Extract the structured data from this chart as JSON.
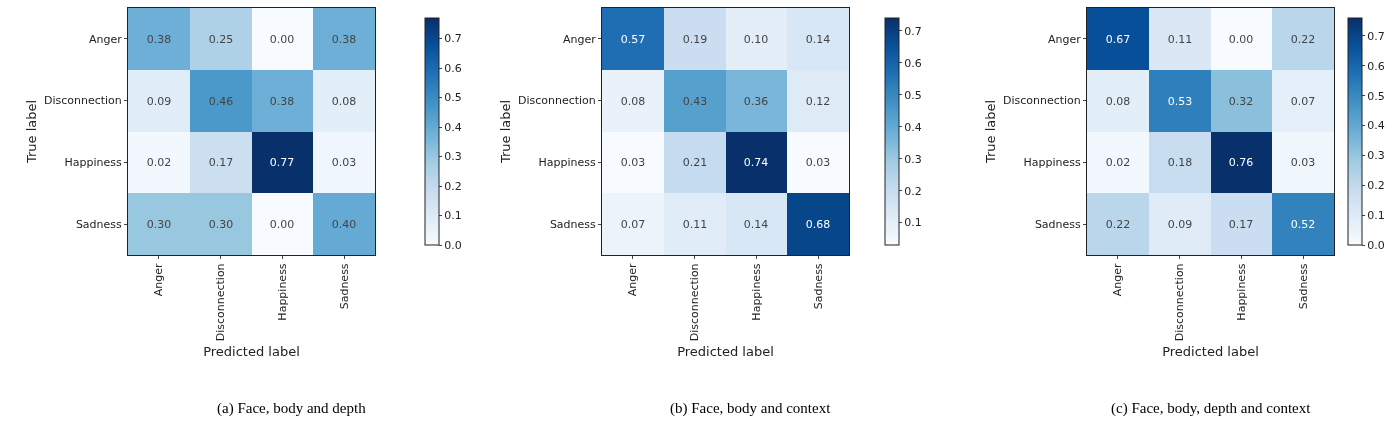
{
  "chart_data": [
    {
      "type": "heatmap",
      "title": "(a) Face, body and depth",
      "xlabel": "Predicted label",
      "ylabel": "True label",
      "categories": [
        "Anger",
        "Disconnection",
        "Happiness",
        "Sadness"
      ],
      "y_categories": [
        "Anger",
        "Disconnection",
        "Happiness",
        "Sadness"
      ],
      "cells": [
        [
          0.38,
          0.25,
          0.0,
          0.38
        ],
        [
          0.09,
          0.46,
          0.38,
          0.08
        ],
        [
          0.02,
          0.17,
          0.77,
          0.03
        ],
        [
          0.3,
          0.3,
          0.0,
          0.4
        ]
      ],
      "cell_labels": [
        [
          "0.38",
          "0.25",
          "0.00",
          "0.38"
        ],
        [
          "0.09",
          "0.46",
          "0.38",
          "0.08"
        ],
        [
          "0.02",
          "0.17",
          "0.77",
          "0.03"
        ],
        [
          "0.30",
          "0.30",
          "0.00",
          "0.40"
        ]
      ],
      "clim": [
        0,
        0.77
      ],
      "cticks": [
        {
          "value": 0,
          "label": "0.0"
        },
        0.1,
        0.2,
        0.3,
        0.4,
        0.5,
        0.6,
        0.7
      ],
      "data_labels": true
    },
    {
      "type": "heatmap",
      "title": "(b) Face, body and context",
      "xlabel": "Predicted label",
      "ylabel": "True label",
      "categories": [
        "Anger",
        "Disconnection",
        "Happiness",
        "Sadness"
      ],
      "y_categories": [
        "Anger",
        "Disconnection",
        "Happiness",
        "Sadness"
      ],
      "cells": [
        [
          0.57,
          0.19,
          0.1,
          0.14
        ],
        [
          0.08,
          0.43,
          0.36,
          0.12
        ],
        [
          0.03,
          0.21,
          0.74,
          0.03
        ],
        [
          0.07,
          0.11,
          0.14,
          0.68
        ]
      ],
      "cell_labels": [
        [
          "0.57",
          "0.19",
          "0.10",
          "0.14"
        ],
        [
          "0.08",
          "0.43",
          "0.36",
          "0.12"
        ],
        [
          "0.03",
          "0.21",
          "0.74",
          "0.03"
        ],
        [
          "0.07",
          "0.11",
          "0.14",
          "0.68"
        ]
      ],
      "clim": [
        0.03,
        0.74
      ],
      "cticks": [
        0.1,
        0.2,
        0.3,
        0.4,
        0.5,
        0.6,
        0.7
      ],
      "data_labels": true
    },
    {
      "type": "heatmap",
      "title": "(c) Face, body, depth and context",
      "xlabel": "Predicted label",
      "ylabel": "True label",
      "categories": [
        "Anger",
        "Disconnection",
        "Happiness",
        "Sadness"
      ],
      "y_categories": [
        "Anger",
        "Disconnection",
        "Happiness",
        "Sadness"
      ],
      "cells": [
        [
          0.67,
          0.11,
          0.0,
          0.22
        ],
        [
          0.08,
          0.53,
          0.32,
          0.07
        ],
        [
          0.02,
          0.18,
          0.76,
          0.03
        ],
        [
          0.22,
          0.09,
          0.17,
          0.52
        ]
      ],
      "cell_labels": [
        [
          "0.67",
          "0.11",
          "0.00",
          "0.22"
        ],
        [
          "0.08",
          "0.53",
          "0.32",
          "0.07"
        ],
        [
          "0.02",
          "0.18",
          "0.76",
          "0.03"
        ],
        [
          "0.22",
          "0.09",
          "0.17",
          "0.52"
        ]
      ],
      "clim": [
        0,
        0.76
      ],
      "cticks": [
        {
          "value": 0,
          "label": "0.0"
        },
        0.1,
        0.2,
        0.3,
        0.4,
        0.5,
        0.6,
        0.7
      ],
      "data_labels": true
    }
  ]
}
